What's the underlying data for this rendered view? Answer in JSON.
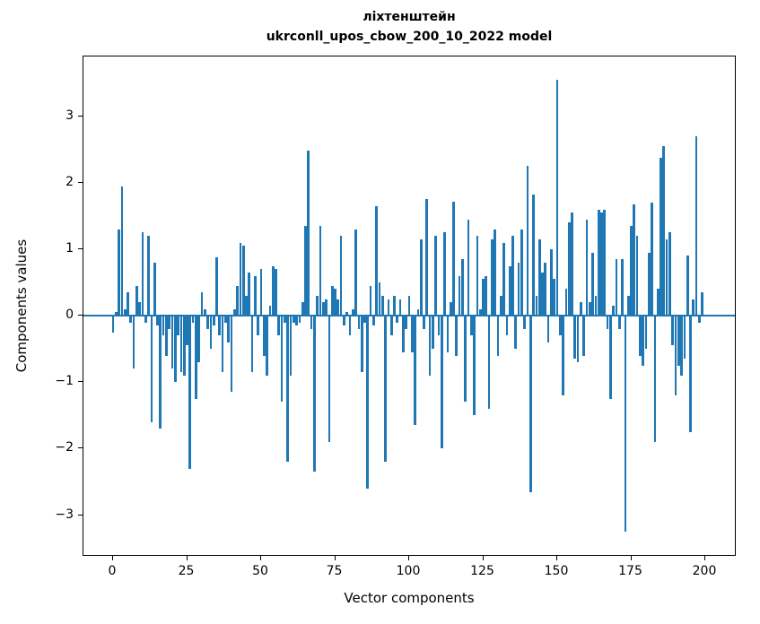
{
  "chart_data": {
    "type": "bar",
    "title_line1": "ліхтенштейн",
    "title_line2": "ukrconll_upos_cbow_200_10_2022 model",
    "xlabel": "Vector components",
    "ylabel": "Components values",
    "bar_color": "#1f77b4",
    "bar_width": 0.8,
    "xlim": [
      -10,
      210
    ],
    "ylim": [
      -3.6,
      3.9
    ],
    "grid": false,
    "legend": "none",
    "x_tick_values": [
      0,
      25,
      50,
      75,
      100,
      125,
      150,
      175,
      200
    ],
    "x_tick_labels": [
      "0",
      "25",
      "50",
      "75",
      "100",
      "125",
      "150",
      "175",
      "200"
    ],
    "y_tick_values": [
      -3,
      -2,
      -1,
      0,
      1,
      2,
      3
    ],
    "y_tick_labels": [
      "−3",
      "−2",
      "−1",
      "0",
      "1",
      "2",
      "3"
    ],
    "x_start": 0,
    "values": [
      -0.25,
      0.05,
      1.3,
      1.95,
      0.1,
      0.35,
      -0.1,
      -0.8,
      0.45,
      0.2,
      1.25,
      -0.1,
      1.2,
      -1.6,
      0.8,
      -0.15,
      -1.7,
      -0.3,
      -0.6,
      -0.2,
      -0.8,
      -1.0,
      -0.3,
      -0.85,
      -0.9,
      -0.45,
      -2.3,
      -0.1,
      -1.25,
      -0.7,
      0.35,
      0.1,
      -0.2,
      -0.5,
      -0.15,
      0.88,
      -0.3,
      -0.85,
      -0.1,
      -0.4,
      -1.15,
      0.1,
      0.45,
      1.1,
      1.05,
      0.3,
      0.65,
      -0.85,
      0.6,
      -0.3,
      0.7,
      -0.6,
      -0.9,
      0.15,
      0.75,
      0.7,
      -0.3,
      -1.3,
      -0.1,
      -2.2,
      -0.9,
      -0.1,
      -0.15,
      -0.1,
      0.2,
      1.35,
      2.48,
      -0.2,
      -2.35,
      0.3,
      1.35,
      0.2,
      0.25,
      -1.9,
      0.45,
      0.4,
      0.25,
      1.2,
      -0.15,
      0.05,
      -0.3,
      0.1,
      1.3,
      -0.2,
      -0.85,
      -0.1,
      -2.6,
      0.45,
      -0.15,
      1.65,
      0.5,
      0.3,
      -2.2,
      0.25,
      -0.3,
      0.3,
      -0.1,
      0.25,
      -0.55,
      -0.2,
      0.3,
      -0.55,
      -1.65,
      0.1,
      1.15,
      -0.2,
      1.75,
      -0.9,
      -0.5,
      1.2,
      -0.3,
      -2.0,
      1.25,
      -0.55,
      0.2,
      1.72,
      -0.6,
      0.6,
      0.85,
      -1.3,
      1.45,
      -0.3,
      -1.5,
      1.2,
      0.1,
      0.55,
      0.6,
      -1.4,
      1.15,
      1.3,
      -0.6,
      0.3,
      1.1,
      -0.3,
      0.75,
      1.2,
      -0.5,
      0.8,
      1.3,
      -0.2,
      2.25,
      -2.65,
      1.82,
      0.3,
      1.15,
      0.65,
      0.8,
      -0.4,
      1.0,
      0.55,
      3.55,
      -0.3,
      -1.2,
      0.4,
      1.4,
      1.55,
      -0.65,
      -0.7,
      0.2,
      -0.6,
      1.45,
      0.2,
      0.95,
      0.3,
      1.6,
      1.55,
      1.6,
      -0.2,
      -1.25,
      0.15,
      0.85,
      -0.2,
      0.85,
      -3.25,
      0.3,
      1.35,
      1.68,
      1.2,
      -0.6,
      -0.75,
      -0.5,
      0.95,
      1.7,
      -1.9,
      0.4,
      2.38,
      2.55,
      1.15,
      1.25,
      -0.45,
      -1.2,
      -0.75,
      -0.9,
      -0.65,
      0.9,
      -1.75,
      0.25,
      2.7,
      -0.1,
      0.35
    ]
  }
}
